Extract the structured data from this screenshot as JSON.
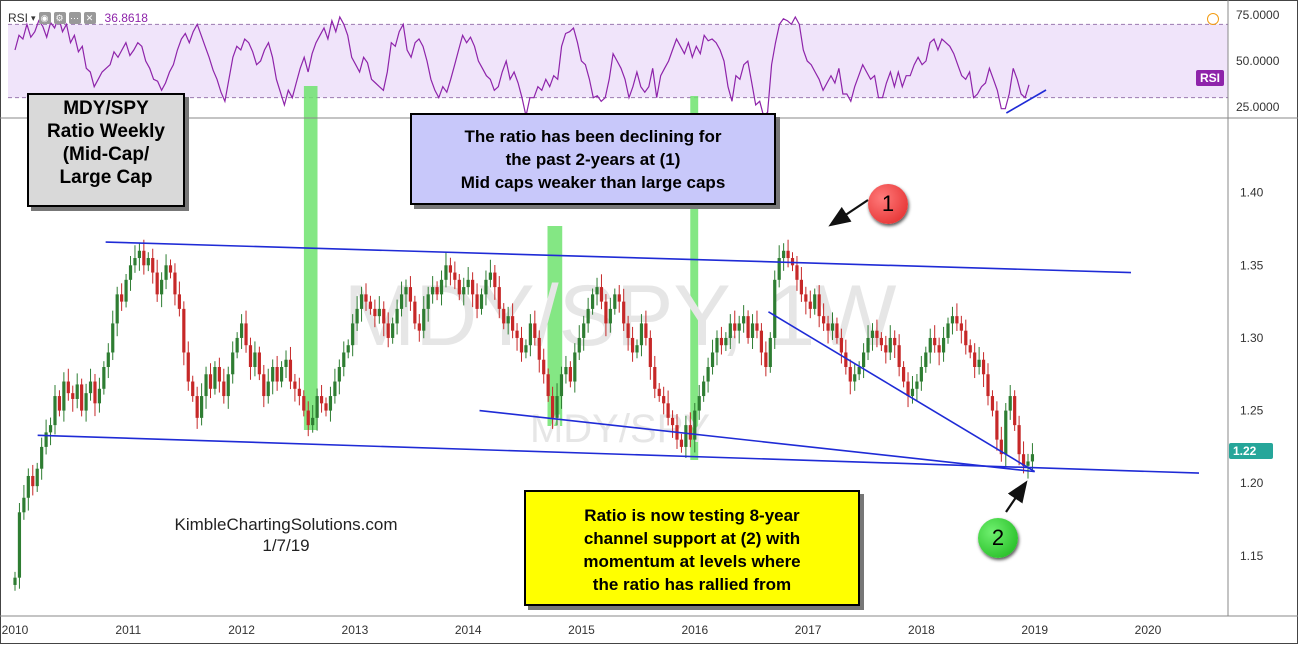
{
  "chart_data": [
    {
      "type": "line",
      "indicator": "RSI",
      "header": {
        "name": "RSI",
        "value": "36.8618"
      },
      "tag": "RSI",
      "y_ticks": [
        "75.0000",
        "50.0000",
        "25.0000"
      ],
      "ylim": [
        20,
        80
      ],
      "band": [
        30,
        70
      ],
      "colors": {
        "line": "#8e24aa",
        "band": "#f0e4fa"
      },
      "series": [
        {
          "values": [
            56,
            64,
            62,
            70,
            63,
            66,
            72,
            69,
            63,
            71,
            68,
            74,
            66,
            70,
            60,
            64,
            55,
            58,
            46,
            44,
            36,
            40,
            44,
            46,
            48,
            55,
            52,
            56,
            60,
            53,
            56,
            60,
            58,
            50,
            46,
            40,
            39,
            34,
            38,
            44,
            48,
            56,
            62,
            65,
            60,
            66,
            70,
            64,
            58,
            52,
            45,
            40,
            33,
            28,
            40,
            52,
            58,
            56,
            62,
            60,
            55,
            48,
            50,
            56,
            60,
            52,
            40,
            33,
            26,
            34,
            30,
            38,
            46,
            52,
            44,
            54,
            60,
            64,
            68,
            62,
            72,
            66,
            74,
            70,
            64,
            52,
            48,
            44,
            52,
            49,
            40,
            38,
            36,
            34,
            44,
            60,
            58,
            66,
            70,
            56,
            52,
            60,
            62,
            58,
            50,
            40,
            34,
            30,
            36,
            33,
            40,
            48,
            56,
            64,
            60,
            63,
            58,
            50,
            46,
            42,
            40,
            34,
            36,
            44,
            50,
            40,
            44,
            38,
            30,
            20,
            30,
            30,
            36,
            34,
            40,
            36,
            42,
            40,
            58,
            65,
            66,
            68,
            60,
            50,
            48,
            40,
            30,
            31,
            28,
            30,
            40,
            54,
            50,
            46,
            40,
            30,
            36,
            44,
            36,
            33,
            36,
            46,
            30,
            42,
            46,
            50,
            56,
            62,
            58,
            54,
            60,
            52,
            58,
            54,
            64,
            61,
            62,
            60,
            56,
            50,
            36,
            28,
            42,
            40,
            48,
            50,
            38,
            26,
            28,
            20,
            22,
            48,
            60,
            70,
            73,
            72,
            70,
            74,
            70,
            56,
            50,
            48,
            44,
            40,
            34,
            38,
            42,
            38,
            46,
            32,
            32,
            28,
            36,
            42,
            48,
            44,
            40,
            42,
            30,
            30,
            38,
            44,
            36,
            44,
            36,
            42,
            42,
            48,
            52,
            48,
            50,
            60,
            62,
            56,
            62,
            60,
            58,
            54,
            48,
            42,
            40,
            44,
            30,
            32,
            36,
            38,
            46,
            40,
            34,
            24,
            24,
            32,
            46,
            40,
            32,
            30,
            37
          ]
        }
      ]
    },
    {
      "type": "candlestick",
      "title": "MDY/SPY",
      "x_ticks": [
        "2010",
        "2011",
        "2012",
        "2013",
        "2014",
        "2015",
        "2016",
        "2017",
        "2018",
        "2019",
        "2020"
      ],
      "y_ticks": [
        "1.40",
        "1.35",
        "1.30",
        "1.25",
        "1.20",
        "1.15"
      ],
      "ylim": [
        1.11,
        1.45
      ],
      "last_price": "1.22",
      "colors": {
        "up": "#2e7d32",
        "down": "#c62828",
        "trendline": "#1f2bd6",
        "highlight": "#6fe36f"
      },
      "series": [
        {
          "name": "MDY/SPY",
          "values": [
            1.135,
            1.18,
            1.19,
            1.205,
            1.198,
            1.21,
            1.225,
            1.235,
            1.24,
            1.26,
            1.25,
            1.27,
            1.262,
            1.258,
            1.268,
            1.25,
            1.262,
            1.27,
            1.255,
            1.265,
            1.28,
            1.29,
            1.31,
            1.33,
            1.325,
            1.34,
            1.35,
            1.355,
            1.36,
            1.35,
            1.355,
            1.345,
            1.33,
            1.34,
            1.35,
            1.345,
            1.33,
            1.32,
            1.29,
            1.27,
            1.26,
            1.245,
            1.26,
            1.275,
            1.265,
            1.28,
            1.27,
            1.26,
            1.275,
            1.29,
            1.3,
            1.31,
            1.295,
            1.28,
            1.29,
            1.275,
            1.26,
            1.27,
            1.28,
            1.27,
            1.28,
            1.285,
            1.27,
            1.265,
            1.26,
            1.25,
            1.24,
            1.245,
            1.26,
            1.255,
            1.25,
            1.26,
            1.27,
            1.28,
            1.29,
            1.295,
            1.31,
            1.32,
            1.33,
            1.325,
            1.32,
            1.315,
            1.32,
            1.31,
            1.3,
            1.31,
            1.32,
            1.33,
            1.335,
            1.325,
            1.31,
            1.305,
            1.32,
            1.33,
            1.335,
            1.33,
            1.34,
            1.35,
            1.345,
            1.34,
            1.33,
            1.335,
            1.34,
            1.33,
            1.32,
            1.33,
            1.34,
            1.345,
            1.335,
            1.32,
            1.31,
            1.315,
            1.305,
            1.3,
            1.29,
            1.295,
            1.31,
            1.3,
            1.285,
            1.275,
            1.26,
            1.245,
            1.26,
            1.275,
            1.28,
            1.27,
            1.29,
            1.3,
            1.31,
            1.32,
            1.33,
            1.335,
            1.325,
            1.31,
            1.32,
            1.33,
            1.325,
            1.31,
            1.3,
            1.29,
            1.295,
            1.31,
            1.3,
            1.28,
            1.265,
            1.26,
            1.255,
            1.245,
            1.24,
            1.23,
            1.225,
            1.24,
            1.23,
            1.25,
            1.26,
            1.27,
            1.28,
            1.29,
            1.3,
            1.295,
            1.3,
            1.31,
            1.305,
            1.31,
            1.315,
            1.3,
            1.31,
            1.305,
            1.29,
            1.28,
            1.3,
            1.34,
            1.355,
            1.36,
            1.355,
            1.35,
            1.34,
            1.33,
            1.325,
            1.32,
            1.33,
            1.315,
            1.31,
            1.305,
            1.31,
            1.3,
            1.29,
            1.28,
            1.27,
            1.275,
            1.28,
            1.29,
            1.3,
            1.305,
            1.3,
            1.295,
            1.29,
            1.3,
            1.295,
            1.28,
            1.27,
            1.26,
            1.265,
            1.27,
            1.28,
            1.29,
            1.3,
            1.295,
            1.29,
            1.3,
            1.31,
            1.315,
            1.31,
            1.305,
            1.295,
            1.29,
            1.28,
            1.285,
            1.275,
            1.26,
            1.25,
            1.23,
            1.22,
            1.25,
            1.26,
            1.24,
            1.22,
            1.212,
            1.215,
            1.22
          ]
        }
      ]
    }
  ],
  "annotations": {
    "title_box": [
      "MDY/SPY",
      "Ratio Weekly",
      "(Mid-Cap/",
      "Large Cap"
    ],
    "declining_box": [
      "The ratio has been declining for",
      "the past 2-years at (1)",
      "Mid caps weaker than large caps"
    ],
    "testing_box": [
      "Ratio is now testing 8-year",
      "channel support at (2) with",
      "momentum at levels where",
      "the ratio has rallied from"
    ],
    "signature": [
      "KimbleChartingSolutions.com",
      "1/7/19"
    ],
    "marker_1": "1",
    "marker_2": "2",
    "watermark_main": "MDY/SPY, 1W",
    "watermark_sub": "MDY/SPY"
  }
}
